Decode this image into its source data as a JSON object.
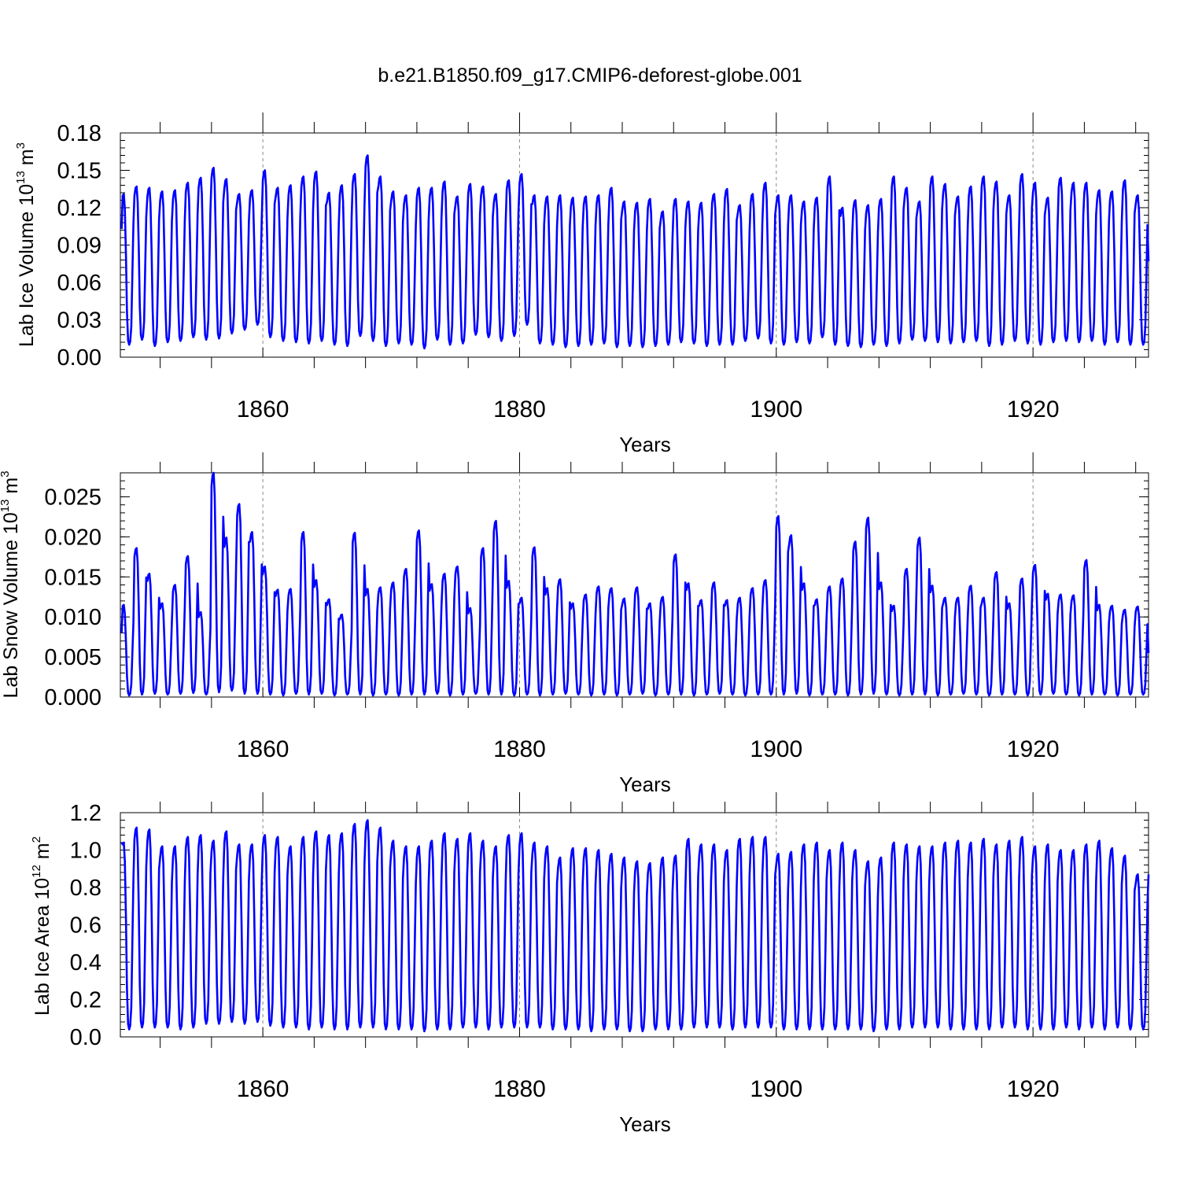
{
  "figure": {
    "title": "b.e21.B1850.f09_g17.CMIP6-deforest-globe.001",
    "line_color": "#0000ff"
  },
  "chart_data": [
    {
      "type": "line",
      "ylabel_text": "Lab Ice Volume 10",
      "ylabel_exp": "13",
      "ylabel_unit": "m",
      "ylabel_unit_exp": "3",
      "xlabel": "Years",
      "xlim": [
        1848.9,
        1929
      ],
      "ylim": [
        0,
        0.18
      ],
      "yticks": [
        0,
        0.03,
        0.06,
        0.09,
        0.12,
        0.15,
        0.18
      ],
      "ytick_labels": [
        "0.00",
        "0.03",
        "0.06",
        "0.09",
        "0.12",
        "0.15",
        "0.18"
      ],
      "xticks": [
        1860,
        1880,
        1900,
        1920
      ],
      "xtick_labels": [
        "1860",
        "1880",
        "1900",
        "1920"
      ],
      "series": [
        {
          "name": "Lab Ice Volume",
          "start_year": 1849.0,
          "months_per_year": 12,
          "first_value": 0.103,
          "last_value": 0.077,
          "annual_max": [
            0.131,
            0.137,
            0.136,
            0.133,
            0.134,
            0.14,
            0.144,
            0.152,
            0.143,
            0.131,
            0.134,
            0.15,
            0.136,
            0.138,
            0.145,
            0.149,
            0.132,
            0.138,
            0.147,
            0.162,
            0.145,
            0.133,
            0.13,
            0.136,
            0.136,
            0.141,
            0.129,
            0.139,
            0.137,
            0.131,
            0.142,
            0.147,
            0.13,
            0.129,
            0.13,
            0.128,
            0.129,
            0.13,
            0.136,
            0.125,
            0.124,
            0.127,
            0.117,
            0.127,
            0.125,
            0.124,
            0.131,
            0.135,
            0.122,
            0.131,
            0.14,
            0.13,
            0.13,
            0.125,
            0.128,
            0.145,
            0.12,
            0.126,
            0.122,
            0.127,
            0.145,
            0.136,
            0.125,
            0.145,
            0.139,
            0.129,
            0.137,
            0.145,
            0.141,
            0.13,
            0.147,
            0.14,
            0.128,
            0.144,
            0.14,
            0.14,
            0.134,
            0.133,
            0.142,
            0.13
          ],
          "annual_min": [
            0.01,
            0.014,
            0.009,
            0.012,
            0.013,
            0.016,
            0.014,
            0.015,
            0.019,
            0.022,
            0.026,
            0.016,
            0.013,
            0.012,
            0.011,
            0.013,
            0.01,
            0.009,
            0.017,
            0.013,
            0.009,
            0.011,
            0.01,
            0.007,
            0.014,
            0.01,
            0.011,
            0.018,
            0.016,
            0.013,
            0.017,
            0.026,
            0.011,
            0.01,
            0.008,
            0.009,
            0.01,
            0.011,
            0.008,
            0.009,
            0.008,
            0.009,
            0.01,
            0.012,
            0.011,
            0.009,
            0.01,
            0.01,
            0.013,
            0.015,
            0.011,
            0.01,
            0.012,
            0.011,
            0.016,
            0.01,
            0.009,
            0.008,
            0.01,
            0.009,
            0.011,
            0.014,
            0.013,
            0.012,
            0.011,
            0.012,
            0.013,
            0.009,
            0.01,
            0.013,
            0.011,
            0.01,
            0.012,
            0.013,
            0.012,
            0.013,
            0.01,
            0.012,
            0.01,
            0.01
          ]
        }
      ]
    },
    {
      "type": "line",
      "ylabel_text": "Lab Snow Volume 10",
      "ylabel_exp": "13",
      "ylabel_unit": "m",
      "ylabel_unit_exp": "3",
      "xlabel": "Years",
      "xlim": [
        1848.9,
        1929
      ],
      "ylim": [
        0,
        0.028
      ],
      "yticks": [
        0,
        0.005,
        0.01,
        0.015,
        0.02,
        0.025
      ],
      "ytick_labels": [
        "0.000",
        "0.005",
        "0.010",
        "0.015",
        "0.020",
        "0.025"
      ],
      "xticks": [
        1860,
        1880,
        1900,
        1920
      ],
      "xtick_labels": [
        "1860",
        "1880",
        "1900",
        "1920"
      ],
      "series": [
        {
          "name": "Lab Snow Volume",
          "start_year": 1849.0,
          "months_per_year": 12,
          "first_value": 0.008,
          "last_value": 0.0055,
          "annual_max": [
            0.0115,
            0.0186,
            0.0154,
            0.0117,
            0.014,
            0.0176,
            0.0106,
            0.028,
            0.0199,
            0.0241,
            0.0206,
            0.0163,
            0.0134,
            0.0135,
            0.0206,
            0.0146,
            0.0122,
            0.0103,
            0.0205,
            0.0135,
            0.0137,
            0.0143,
            0.016,
            0.0208,
            0.0141,
            0.0154,
            0.0163,
            0.0111,
            0.0186,
            0.022,
            0.0145,
            0.0124,
            0.0187,
            0.0136,
            0.0147,
            0.0117,
            0.0128,
            0.0138,
            0.0136,
            0.0123,
            0.0137,
            0.0117,
            0.0125,
            0.0178,
            0.0142,
            0.0121,
            0.0143,
            0.0121,
            0.0124,
            0.0136,
            0.0146,
            0.0226,
            0.0202,
            0.0142,
            0.0122,
            0.0138,
            0.0148,
            0.0194,
            0.0224,
            0.0143,
            0.0114,
            0.016,
            0.0199,
            0.0139,
            0.0124,
            0.0124,
            0.0139,
            0.0124,
            0.0156,
            0.0117,
            0.0148,
            0.0165,
            0.0129,
            0.0128,
            0.0127,
            0.0171,
            0.0115,
            0.0114,
            0.0109,
            0.0113
          ],
          "annual_min": [
            0.0002,
            0.0003,
            0.0004,
            0.0003,
            0.0004,
            0.0005,
            0.0003,
            0.0006,
            0.0008,
            0.0004,
            0.0004,
            0.0003,
            0.0002,
            0.0004,
            0.0003,
            0.0004,
            0.0002,
            0.0003,
            0.0003,
            0.0002,
            0.0003,
            0.0002,
            0.0003,
            0.0003,
            0.0004,
            0.0002,
            0.0003,
            0.0004,
            0.0003,
            0.0003,
            0.0002,
            0.0003,
            0.0002,
            0.0003,
            0.0004,
            0.0003,
            0.0002,
            0.0003,
            0.0002,
            0.0003,
            0.0004,
            0.0002,
            0.0003,
            0.0003,
            0.0002,
            0.0003,
            0.0004,
            0.0003,
            0.0002,
            0.0003,
            0.0003,
            0.0003,
            0.0004,
            0.0002,
            0.0003,
            0.0003,
            0.0002,
            0.0003,
            0.0004,
            0.0003,
            0.0002,
            0.0003,
            0.0003,
            0.0002,
            0.0003,
            0.0004,
            0.0003,
            0.0002,
            0.0003,
            0.0003,
            0.0002,
            0.0003,
            0.0004,
            0.0003,
            0.0002,
            0.0003,
            0.0003,
            0.0002,
            0.0003,
            0.0003
          ]
        }
      ]
    },
    {
      "type": "line",
      "ylabel_text": "Lab Ice Area 10",
      "ylabel_exp": "12",
      "ylabel_unit": "m",
      "ylabel_unit_exp": "2",
      "xlabel": "Years",
      "xlim": [
        1848.9,
        1929
      ],
      "ylim": [
        0,
        1.2
      ],
      "yticks": [
        0,
        0.2,
        0.4,
        0.6,
        0.8,
        1.0,
        1.2
      ],
      "ytick_labels": [
        "0.0",
        "0.2",
        "0.4",
        "0.6",
        "0.8",
        "1.0",
        "1.2"
      ],
      "xticks": [
        1860,
        1880,
        1900,
        1920
      ],
      "xtick_labels": [
        "1860",
        "1880",
        "1900",
        "1920"
      ],
      "series": [
        {
          "name": "Lab Ice Area",
          "start_year": 1849.0,
          "months_per_year": 12,
          "first_value": 1.04,
          "last_value": 0.87,
          "annual_max": [
            1.04,
            1.12,
            1.11,
            1.02,
            1.02,
            1.07,
            1.08,
            1.05,
            1.1,
            1.03,
            1.03,
            1.08,
            1.07,
            1.02,
            1.07,
            1.1,
            1.08,
            1.09,
            1.14,
            1.16,
            1.12,
            1.05,
            1.02,
            1.02,
            1.05,
            1.09,
            1.06,
            1.09,
            1.05,
            1.02,
            1.08,
            1.09,
            1.04,
            1.02,
            0.96,
            1.01,
            1.01,
            1.0,
            0.98,
            0.96,
            0.94,
            0.93,
            0.96,
            0.97,
            1.06,
            1.03,
            1.03,
            1.0,
            1.06,
            1.07,
            1.07,
            0.98,
            0.99,
            1.03,
            1.04,
            1.0,
            1.04,
            1.0,
            0.94,
            0.96,
            1.04,
            1.03,
            1.02,
            1.02,
            1.04,
            1.05,
            1.04,
            1.06,
            1.03,
            1.05,
            1.07,
            1.02,
            1.03,
            1.0,
            1.0,
            1.03,
            1.05,
            1.01,
            0.97,
            0.87
          ],
          "annual_min": [
            0.04,
            0.05,
            0.05,
            0.05,
            0.04,
            0.05,
            0.07,
            0.07,
            0.08,
            0.07,
            0.08,
            0.06,
            0.05,
            0.05,
            0.04,
            0.05,
            0.04,
            0.04,
            0.05,
            0.05,
            0.04,
            0.04,
            0.04,
            0.03,
            0.04,
            0.04,
            0.05,
            0.05,
            0.04,
            0.05,
            0.05,
            0.05,
            0.05,
            0.04,
            0.04,
            0.04,
            0.03,
            0.04,
            0.04,
            0.03,
            0.03,
            0.04,
            0.04,
            0.04,
            0.05,
            0.05,
            0.05,
            0.04,
            0.05,
            0.05,
            0.05,
            0.04,
            0.04,
            0.04,
            0.04,
            0.04,
            0.04,
            0.04,
            0.03,
            0.04,
            0.04,
            0.05,
            0.05,
            0.05,
            0.04,
            0.04,
            0.04,
            0.04,
            0.05,
            0.05,
            0.04,
            0.04,
            0.04,
            0.05,
            0.04,
            0.05,
            0.04,
            0.05,
            0.04,
            0.04
          ]
        }
      ]
    }
  ]
}
